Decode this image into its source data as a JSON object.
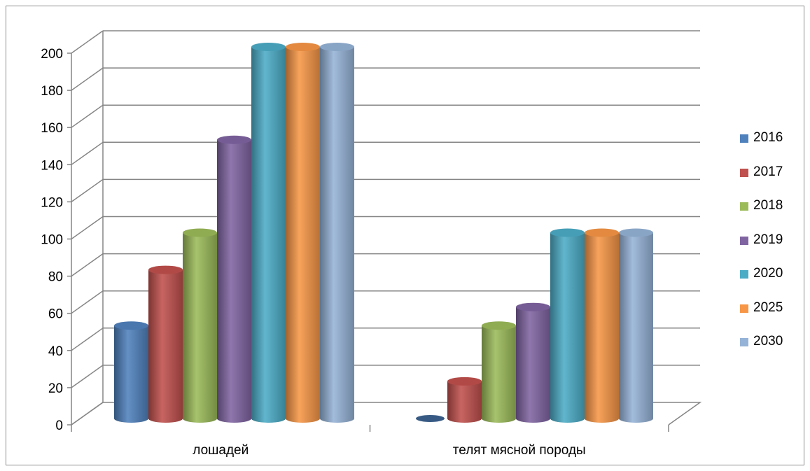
{
  "chart_data": {
    "type": "bar",
    "variant": "3d-cylinder-clustered",
    "categories": [
      "лошадей",
      "телят мясной породы"
    ],
    "series": [
      {
        "name": "2016",
        "color": "#4f81bd",
        "values": [
          50,
          0
        ]
      },
      {
        "name": "2017",
        "color": "#c0504d",
        "values": [
          80,
          20
        ]
      },
      {
        "name": "2018",
        "color": "#9bbb59",
        "values": [
          100,
          50
        ]
      },
      {
        "name": "2019",
        "color": "#8064a2",
        "values": [
          150,
          60
        ]
      },
      {
        "name": "2020",
        "color": "#4bacc6",
        "values": [
          200,
          100
        ]
      },
      {
        "name": "2025",
        "color": "#f79646",
        "values": [
          200,
          100
        ]
      },
      {
        "name": "2030",
        "color": "#95b3d7",
        "values": [
          200,
          100
        ]
      }
    ],
    "y_ticks": [
      "0",
      "20",
      "40",
      "60",
      "80",
      "100",
      "120",
      "140",
      "160",
      "180",
      "200"
    ],
    "ylim": [
      0,
      200
    ],
    "grid": true,
    "legend_position": "right"
  }
}
